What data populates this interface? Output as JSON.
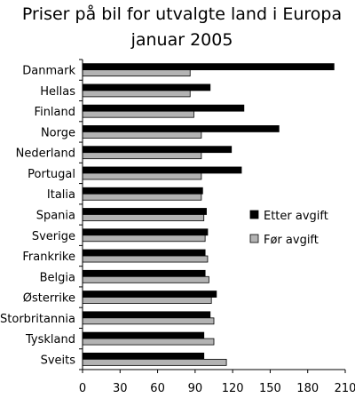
{
  "chart_data": {
    "type": "bar",
    "orientation": "horizontal",
    "title_lines": [
      "Priser på  bil for utvalgte land i Europa",
      "januar 2005"
    ],
    "categories": [
      "Danmark",
      "Hellas",
      "Finland",
      "Norge",
      "Nederland",
      "Portugal",
      "Italia",
      "Spania",
      "Sverige",
      "Frankrike",
      "Belgia",
      "Østerrike",
      "Storbritannia",
      "Tyskland",
      "Sveits"
    ],
    "series": [
      {
        "name": "Etter avgift",
        "color": "#000000",
        "values": [
          201,
          102,
          129,
          157,
          119,
          127,
          96,
          99,
          100,
          98,
          98,
          107,
          102,
          97,
          97
        ]
      },
      {
        "name": "Før avgift",
        "color": "#b3b3b3",
        "values": [
          86,
          86,
          89,
          95,
          95,
          95,
          95,
          97,
          98,
          100,
          101,
          103,
          105,
          105,
          115
        ]
      }
    ],
    "xlim": [
      0,
      210
    ],
    "xticks": [
      0,
      30,
      60,
      90,
      120,
      150,
      180,
      210
    ],
    "grid": false,
    "legend_position": "right"
  }
}
